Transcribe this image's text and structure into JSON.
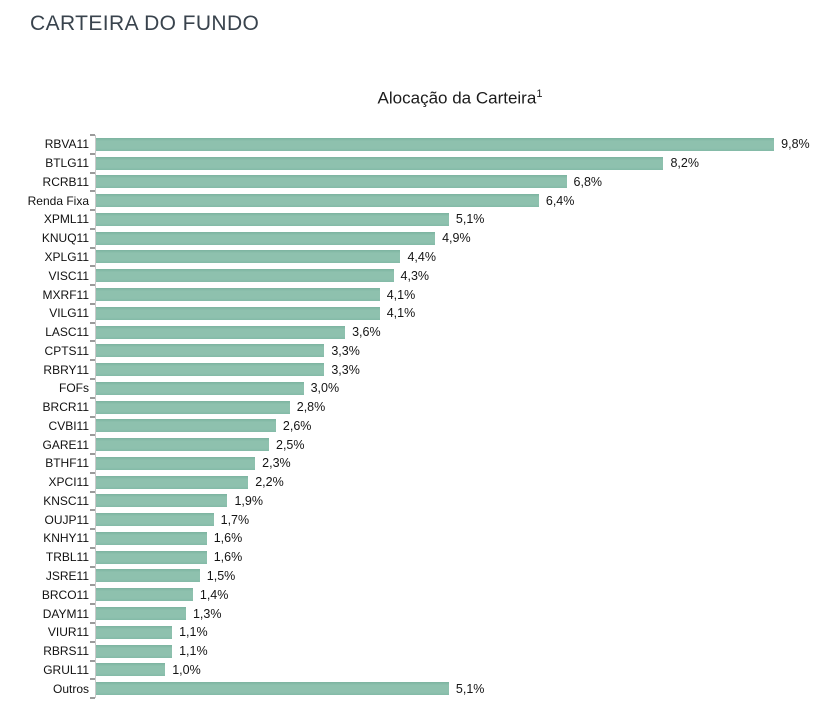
{
  "page_title": "CARTEIRA DO FUNDO",
  "chart_title": "Alocação da Carteira",
  "chart_title_superscript": "1",
  "colors": {
    "bar": "#8ec1ae",
    "bar_edge": "#7cb3a0",
    "page_title_text": "#39434d",
    "axis_line": "#c9c9c9",
    "tick": "#9b9b9b",
    "label_text": "#111111"
  },
  "chart_data": {
    "type": "bar",
    "orientation": "horizontal",
    "title": "Alocação da Carteira¹",
    "xlabel": "",
    "ylabel": "",
    "unit": "%",
    "xlim": [
      0,
      10
    ],
    "grid": false,
    "legend": false,
    "categories": [
      "RBVA11",
      "BTLG11",
      "RCRB11",
      "Renda Fixa",
      "XPML11",
      "KNUQ11",
      "XPLG11",
      "VISC11",
      "MXRF11",
      "VILG11",
      "LASC11",
      "CPTS11",
      "RBRY11",
      "FOFs",
      "BRCR11",
      "CVBI11",
      "GARE11",
      "BTHF11",
      "XPCI11",
      "KNSC11",
      "OUJP11",
      "KNHY11",
      "TRBL11",
      "JSRE11",
      "BRCO11",
      "DAYM11",
      "VIUR11",
      "RBRS11",
      "GRUL11",
      "Outros"
    ],
    "values": [
      9.8,
      8.2,
      6.8,
      6.4,
      5.1,
      4.9,
      4.4,
      4.3,
      4.1,
      4.1,
      3.6,
      3.3,
      3.3,
      3.0,
      2.8,
      2.6,
      2.5,
      2.3,
      2.2,
      1.9,
      1.7,
      1.6,
      1.6,
      1.5,
      1.4,
      1.3,
      1.1,
      1.1,
      1.0,
      5.1
    ],
    "value_labels": [
      "9,8%",
      "8,2%",
      "6,8%",
      "6,4%",
      "5,1%",
      "4,9%",
      "4,4%",
      "4,3%",
      "4,1%",
      "4,1%",
      "3,6%",
      "3,3%",
      "3,3%",
      "3,0%",
      "2,8%",
      "2,6%",
      "2,5%",
      "2,3%",
      "2,2%",
      "1,9%",
      "1,7%",
      "1,6%",
      "1,6%",
      "1,5%",
      "1,4%",
      "1,3%",
      "1,1%",
      "1,1%",
      "1,0%",
      "5,1%"
    ]
  }
}
